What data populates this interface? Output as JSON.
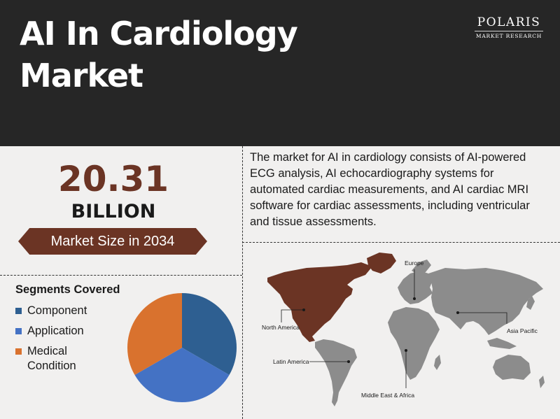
{
  "header": {
    "title_line1": "AI In Cardiology",
    "title_line2": "Market",
    "background": "#262626"
  },
  "logo": {
    "name": "POLARIS",
    "subtitle": "MARKET RESEARCH"
  },
  "market_size": {
    "value": "20.31",
    "unit": "BILLION",
    "label": "Market Size in 2034",
    "accent": "#6b3424"
  },
  "description": "The market for AI in cardiology consists of AI-powered ECG analysis, AI echocardiography systems for automated cardiac measurements, and AI cardiac MRI software for cardiac assessments, including ventricular and tissue assessments.",
  "segments": {
    "title": "Segments Covered",
    "items": [
      {
        "label": "Component",
        "color": "#2e5f91"
      },
      {
        "label": "Application",
        "color": "#4472c4"
      },
      {
        "label": "Medical Condition",
        "color": "#d9722e"
      }
    ],
    "pie_slices": [
      {
        "label": "Component",
        "fraction": 0.3333,
        "color": "#2e5f91"
      },
      {
        "label": "Application",
        "fraction": 0.3333,
        "color": "#4472c4"
      },
      {
        "label": "Medical Condition",
        "fraction": 0.3334,
        "color": "#d9722e"
      }
    ]
  },
  "map": {
    "highlight_color": "#6b3424",
    "base_color": "#8c8c8c",
    "regions": {
      "north_america": "North America",
      "europe": "Europe",
      "asia_pacific": "Asia Pacific",
      "latin_america": "Latin America",
      "mea": "Middle East & Africa"
    }
  }
}
